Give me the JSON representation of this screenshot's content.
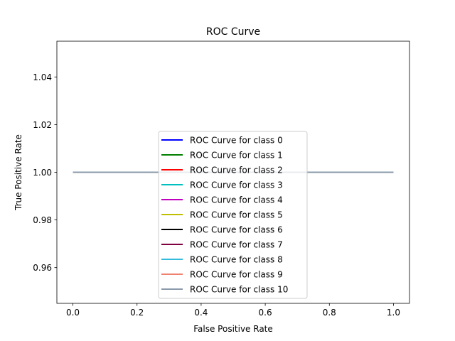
{
  "chart_data": {
    "type": "line",
    "title": "ROC Curve",
    "xlabel": "False Positive Rate",
    "ylabel": "True Positive Rate",
    "xlim": [
      -0.05,
      1.05
    ],
    "ylim": [
      0.945,
      1.055
    ],
    "xticks": [
      0.0,
      0.2,
      0.4,
      0.6,
      0.8,
      1.0
    ],
    "xtick_labels": [
      "0.0",
      "0.2",
      "0.4",
      "0.6",
      "0.8",
      "1.0"
    ],
    "yticks": [
      0.96,
      0.98,
      1.0,
      1.02,
      1.04
    ],
    "ytick_labels": [
      "0.96",
      "0.98",
      "1.00",
      "1.02",
      "1.04"
    ],
    "grid": false,
    "legend_position": "center-bottom",
    "series": [
      {
        "name": "ROC Curve for class 0",
        "color": "#0000ff",
        "x": [
          0.0,
          1.0
        ],
        "y": [
          1.0,
          1.0
        ]
      },
      {
        "name": "ROC Curve for class 1",
        "color": "#008000",
        "x": [
          0.0,
          1.0
        ],
        "y": [
          1.0,
          1.0
        ]
      },
      {
        "name": "ROC Curve for class 2",
        "color": "#ff0000",
        "x": [
          0.0,
          1.0
        ],
        "y": [
          1.0,
          1.0
        ]
      },
      {
        "name": "ROC Curve for class 3",
        "color": "#00bfbf",
        "x": [
          0.0,
          1.0
        ],
        "y": [
          1.0,
          1.0
        ]
      },
      {
        "name": "ROC Curve for class 4",
        "color": "#bf00bf",
        "x": [
          0.0,
          1.0
        ],
        "y": [
          1.0,
          1.0
        ]
      },
      {
        "name": "ROC Curve for class 5",
        "color": "#bfbf00",
        "x": [
          0.0,
          1.0
        ],
        "y": [
          1.0,
          1.0
        ]
      },
      {
        "name": "ROC Curve for class 6",
        "color": "#000000",
        "x": [
          0.0,
          1.0
        ],
        "y": [
          1.0,
          1.0
        ]
      },
      {
        "name": "ROC Curve for class 7",
        "color": "#800040",
        "x": [
          0.0,
          1.0
        ],
        "y": [
          1.0,
          1.0
        ]
      },
      {
        "name": "ROC Curve for class 8",
        "color": "#33bbdd",
        "x": [
          0.0,
          1.0
        ],
        "y": [
          1.0,
          1.0
        ]
      },
      {
        "name": "ROC Curve for class 9",
        "color": "#f08070",
        "x": [
          0.0,
          1.0
        ],
        "y": [
          1.0,
          1.0
        ]
      },
      {
        "name": "ROC Curve for class 10",
        "color": "#8a9aab",
        "x": [
          0.0,
          1.0
        ],
        "y": [
          1.0,
          1.0
        ]
      }
    ]
  }
}
